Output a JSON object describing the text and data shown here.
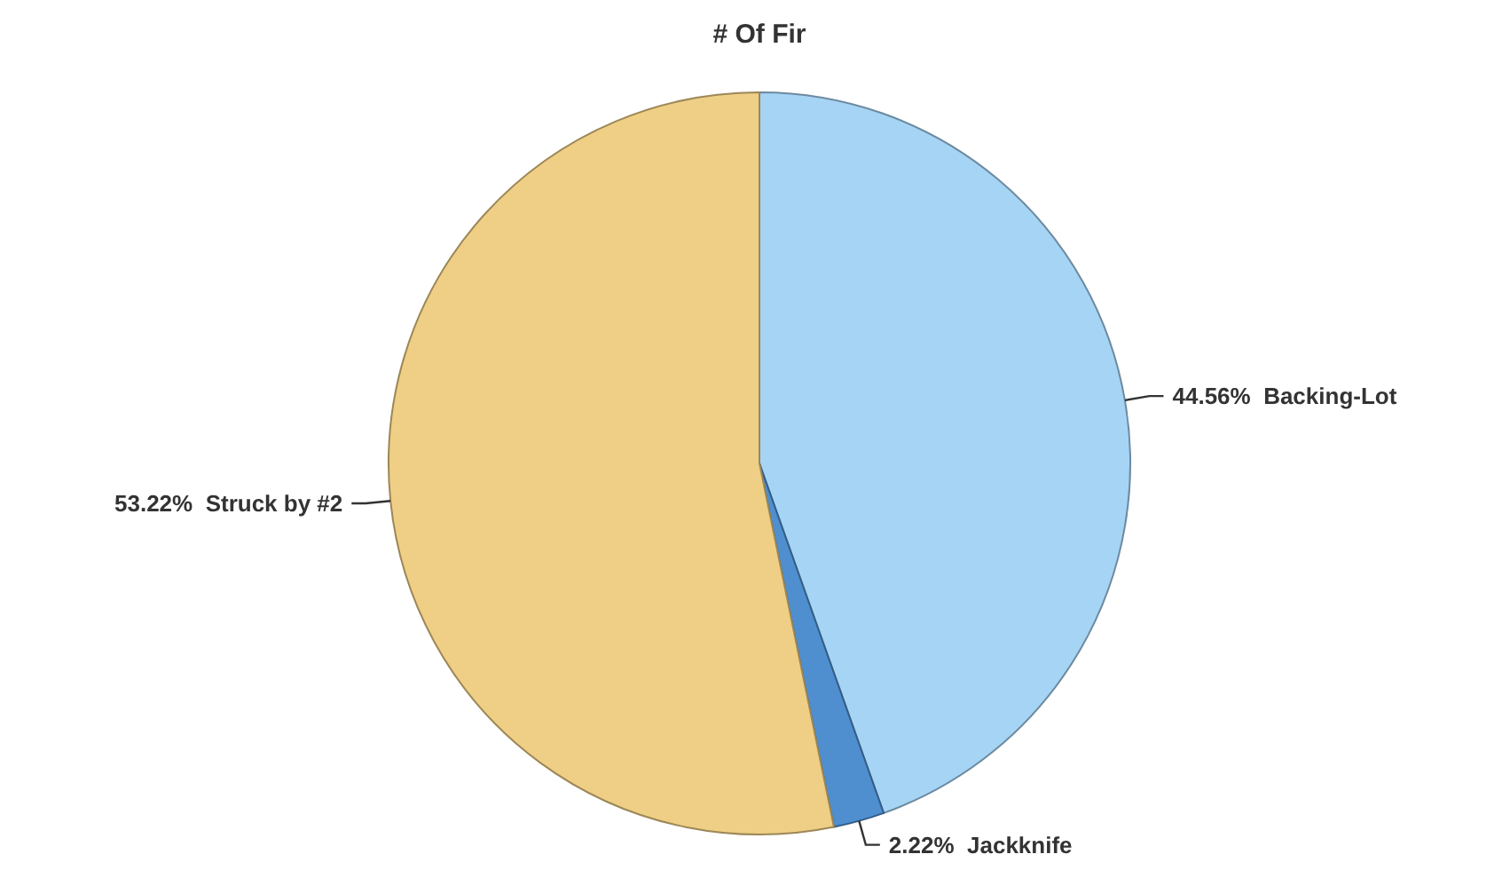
{
  "chart_data": {
    "type": "pie",
    "title": "# Of Fir",
    "categories": [
      "Backing-Lot",
      "Jackknife",
      "Struck by #2"
    ],
    "values": [
      44.56,
      2.22,
      53.22
    ],
    "value_labels": [
      "44.56%",
      "2.22%",
      "53.22%"
    ],
    "colors": [
      "#a6d4f5",
      "#4f8fcf",
      "#efcf85"
    ]
  }
}
